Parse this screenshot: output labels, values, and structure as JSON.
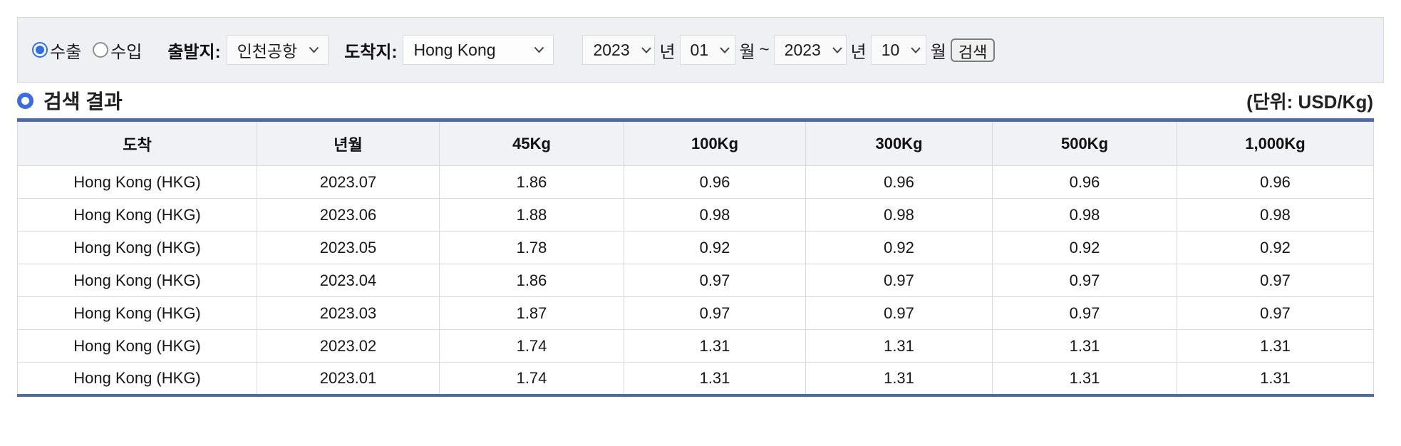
{
  "filter": {
    "radios": [
      {
        "label": "수출",
        "selected": true
      },
      {
        "label": "수입",
        "selected": false
      }
    ],
    "origin_label": "출발지:",
    "origin_value": "인천공항",
    "dest_label": "도착지:",
    "dest_value": "Hong Kong",
    "period": {
      "start_year": "2023",
      "start_month": "01",
      "end_year": "2023",
      "end_month": "10",
      "year_suffix": "년",
      "month_suffix": "월",
      "tilde": "~"
    },
    "search_button_label": "검색"
  },
  "results": {
    "title": "검색 결과",
    "unit": "(단위: USD/Kg)"
  },
  "table": {
    "headers": [
      "도착",
      "년월",
      "45Kg",
      "100Kg",
      "300Kg",
      "500Kg",
      "1,000Kg"
    ],
    "rows": [
      [
        "Hong Kong (HKG)",
        "2023.07",
        "1.86",
        "0.96",
        "0.96",
        "0.96",
        "0.96"
      ],
      [
        "Hong Kong (HKG)",
        "2023.06",
        "1.88",
        "0.98",
        "0.98",
        "0.98",
        "0.98"
      ],
      [
        "Hong Kong (HKG)",
        "2023.05",
        "1.78",
        "0.92",
        "0.92",
        "0.92",
        "0.92"
      ],
      [
        "Hong Kong (HKG)",
        "2023.04",
        "1.86",
        "0.97",
        "0.97",
        "0.97",
        "0.97"
      ],
      [
        "Hong Kong (HKG)",
        "2023.03",
        "1.87",
        "0.97",
        "0.97",
        "0.97",
        "0.97"
      ],
      [
        "Hong Kong (HKG)",
        "2023.02",
        "1.74",
        "1.31",
        "1.31",
        "1.31",
        "1.31"
      ],
      [
        "Hong Kong (HKG)",
        "2023.01",
        "1.74",
        "1.31",
        "1.31",
        "1.31",
        "1.31"
      ]
    ]
  },
  "colors": {
    "table_accent_blue": "#5069a7",
    "radio_blue": "#2f6fe4",
    "bullet_blue": "#3d6be0",
    "filter_bar_bg": "#eff0f4",
    "header_row_bg": "#f0f2f6"
  }
}
